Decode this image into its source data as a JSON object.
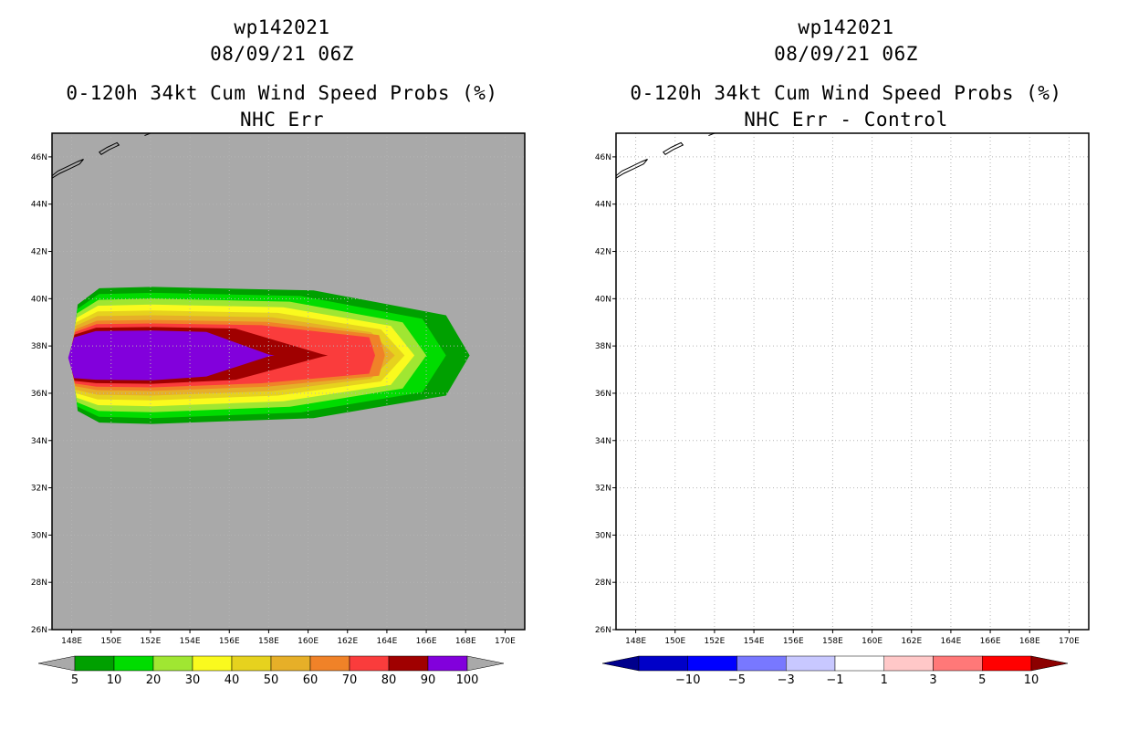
{
  "chart_data": [
    {
      "type": "heatmap",
      "storm_id": "wp142021",
      "datetime": "08/09/21 06Z",
      "title": "0-120h 34kt Cum Wind Speed Probs (%)",
      "subtitle": "NHC Err",
      "xlim": [
        147,
        171
      ],
      "ylim": [
        26,
        47
      ],
      "x_ticks": [
        "148E",
        "150E",
        "152E",
        "154E",
        "156E",
        "158E",
        "160E",
        "162E",
        "164E",
        "166E",
        "168E",
        "170E"
      ],
      "y_ticks": [
        "26N",
        "28N",
        "30N",
        "32N",
        "34N",
        "36N",
        "38N",
        "40N",
        "42N",
        "44N",
        "46N"
      ],
      "background": "#a9a9a9",
      "grid": true,
      "colorbar": {
        "labels": [
          "5",
          "10",
          "20",
          "30",
          "40",
          "50",
          "60",
          "70",
          "80",
          "90",
          "100"
        ],
        "colors": [
          "#00a000",
          "#00dc00",
          "#a0e632",
          "#fafa1e",
          "#e6d21e",
          "#e6af28",
          "#f08228",
          "#fa3c3c",
          "#a00000",
          "#8200dc"
        ],
        "end_color": "#a9a9a9"
      },
      "field": {
        "center": [
          150.6,
          37.5
        ],
        "axis_end_lon": 168.2,
        "layers": [
          {
            "threshold": 5,
            "tip_lon": 168.2,
            "half_width": 3.0,
            "color": "#00a000"
          },
          {
            "threshold": 10,
            "tip_lon": 167.0,
            "half_width": 2.75,
            "color": "#00dc00"
          },
          {
            "threshold": 20,
            "tip_lon": 166.0,
            "half_width": 2.5,
            "color": "#a0e632"
          },
          {
            "threshold": 30,
            "tip_lon": 165.4,
            "half_width": 2.25,
            "color": "#fafa1e"
          },
          {
            "threshold": 40,
            "tip_lon": 164.9,
            "half_width": 2.0,
            "color": "#e6d21e"
          },
          {
            "threshold": 50,
            "tip_lon": 164.4,
            "half_width": 1.8,
            "color": "#e6af28"
          },
          {
            "threshold": 60,
            "tip_lon": 163.9,
            "half_width": 1.6,
            "color": "#f08228"
          },
          {
            "threshold": 70,
            "tip_lon": 163.4,
            "half_width": 1.45,
            "color": "#fa3c3c"
          },
          {
            "threshold": 80,
            "tip_lon": 161.0,
            "half_width": 1.3,
            "color": "#a00000"
          },
          {
            "threshold": 90,
            "tip_lon": 158.3,
            "half_width": 1.15,
            "color": "#8200dc"
          }
        ]
      }
    },
    {
      "type": "heatmap",
      "storm_id": "wp142021",
      "datetime": "08/09/21 06Z",
      "title": "0-120h 34kt Cum Wind Speed Probs (%)",
      "subtitle": "NHC Err - Control",
      "xlim": [
        147,
        171
      ],
      "ylim": [
        26,
        47
      ],
      "x_ticks": [
        "148E",
        "150E",
        "152E",
        "154E",
        "156E",
        "158E",
        "160E",
        "162E",
        "164E",
        "166E",
        "168E",
        "170E"
      ],
      "y_ticks": [
        "26N",
        "28N",
        "30N",
        "32N",
        "34N",
        "36N",
        "38N",
        "40N",
        "42N",
        "44N",
        "46N"
      ],
      "background": "#ffffff",
      "grid": true,
      "colorbar": {
        "labels": [
          "-10",
          "-5",
          "-3",
          "-1",
          "1",
          "3",
          "5",
          "10"
        ],
        "colors": [
          "#0000c8",
          "#0000ff",
          "#7878ff",
          "#c8c8ff",
          "#ffffff",
          "#ffc8c8",
          "#ff7878",
          "#ff0000"
        ],
        "start_color": "#00008c",
        "end_color": "#8c0000"
      },
      "field": null
    }
  ]
}
